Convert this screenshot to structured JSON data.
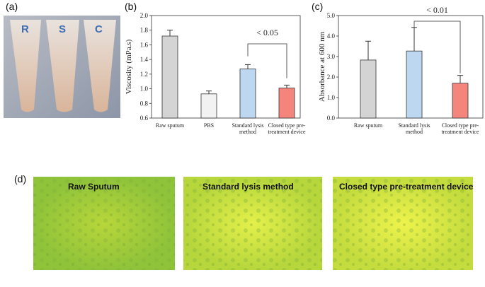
{
  "chart_data": [
    {
      "type": "bar",
      "ylabel": "Viscosity (mPa.s)",
      "categories": [
        "Raw sputum",
        "PBS",
        "Standard lysis method",
        "Closed type pre-treatment device"
      ],
      "values": [
        1.72,
        0.93,
        1.27,
        1.01
      ],
      "errors": [
        0.08,
        0.04,
        0.06,
        0.04
      ],
      "colors": [
        "#d4d4d4",
        "#f2f2f2",
        "#bcd7ef",
        "#f4857d"
      ],
      "ylim": [
        0.6,
        2.0
      ],
      "yticks": [
        0.6,
        0.8,
        {
          "value": 1,
          "label": "1.0"
        },
        1.2,
        1.4,
        1.6,
        1.8,
        {
          "value": 2,
          "label": "2.0"
        }
      ],
      "annotation": "< 0.05"
    },
    {
      "type": "bar",
      "ylabel": "Absorbance at 600 nm",
      "categories": [
        "Raw sputum",
        "Standard lysis method",
        "Closed type pre-treatment device"
      ],
      "values": [
        2.83,
        3.27,
        1.7
      ],
      "errors": [
        0.92,
        1.15,
        0.38
      ],
      "colors": [
        "#d4d4d4",
        "#bcd7ef",
        "#f4857d"
      ],
      "ylim": [
        0,
        5
      ],
      "yticks": [
        {
          "value": 0,
          "label": "0.0"
        },
        {
          "value": 1,
          "label": "1.0"
        },
        {
          "value": 2,
          "label": "2.0"
        },
        {
          "value": 3,
          "label": "3.0"
        },
        {
          "value": 4,
          "label": "4.0"
        },
        {
          "value": 5,
          "label": "5.0"
        }
      ],
      "annotation": "< 0.01"
    }
  ],
  "panel_labels": [
    "(a)",
    "(b)",
    "(c)",
    "(d)"
  ],
  "tube_labels": [
    "R",
    "S",
    "C"
  ],
  "micrographs": [
    "Raw Sputum",
    "Standard lysis method",
    "Closed type pre-treatment device"
  ]
}
